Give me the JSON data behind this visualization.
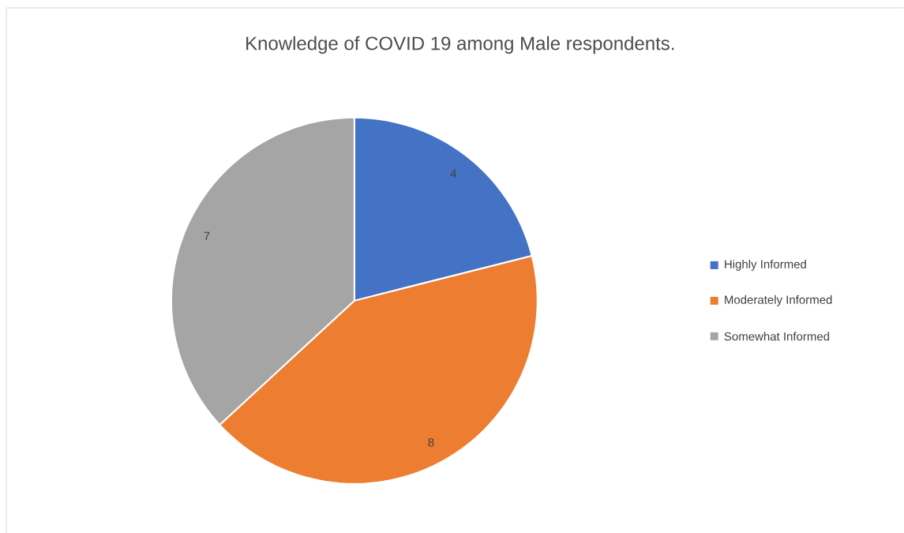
{
  "chart_data": {
    "type": "pie",
    "title": "Knowledge of COVID 19 among Male respondents.",
    "categories": [
      "Highly Informed",
      "Moderately Informed",
      "Somewhat Informed"
    ],
    "values": [
      4,
      8,
      7
    ],
    "colors": [
      "#4472c4",
      "#ed7d31",
      "#a5a5a5"
    ],
    "data_labels": true,
    "legend": "right"
  }
}
